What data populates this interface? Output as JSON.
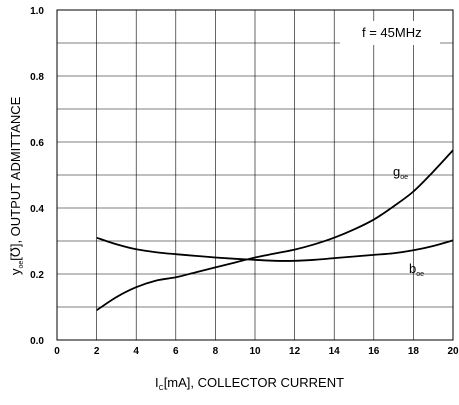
{
  "chart_data": {
    "type": "line",
    "annotation": "f = 45MHz",
    "xlabel": {
      "main": "I",
      "sub": "C",
      "rest": "[mA], COLLECTOR CURRENT"
    },
    "ylabel": {
      "main": "y",
      "sub": "oe",
      "rest": "[℧], OUTPUT ADMITTANCE"
    },
    "xlim": [
      0,
      20
    ],
    "ylim": [
      0,
      1.0
    ],
    "x_ticks": [
      "0",
      "2",
      "4",
      "6",
      "8",
      "10",
      "12",
      "14",
      "16",
      "18",
      "20"
    ],
    "y_ticks": [
      "0.0",
      "0.2",
      "0.4",
      "0.6",
      "0.8",
      "1.0"
    ],
    "grid": true,
    "series": [
      {
        "name": "g",
        "name_sub": "oe",
        "x": [
          2,
          3,
          4,
          5,
          6,
          7,
          8,
          9,
          10,
          11,
          12,
          13,
          14,
          15,
          16,
          17,
          18,
          19,
          20
        ],
        "y": [
          0.09,
          0.13,
          0.16,
          0.18,
          0.19,
          0.205,
          0.22,
          0.235,
          0.25,
          0.262,
          0.274,
          0.29,
          0.31,
          0.335,
          0.365,
          0.405,
          0.45,
          0.51,
          0.575
        ]
      },
      {
        "name": "b",
        "name_sub": "oe",
        "x": [
          2,
          3,
          4,
          5,
          6,
          7,
          8,
          9,
          10,
          11,
          12,
          13,
          14,
          15,
          16,
          17,
          18,
          19,
          20
        ],
        "y": [
          0.31,
          0.29,
          0.275,
          0.266,
          0.26,
          0.255,
          0.25,
          0.246,
          0.243,
          0.24,
          0.24,
          0.243,
          0.248,
          0.253,
          0.258,
          0.263,
          0.272,
          0.285,
          0.302
        ]
      }
    ]
  }
}
